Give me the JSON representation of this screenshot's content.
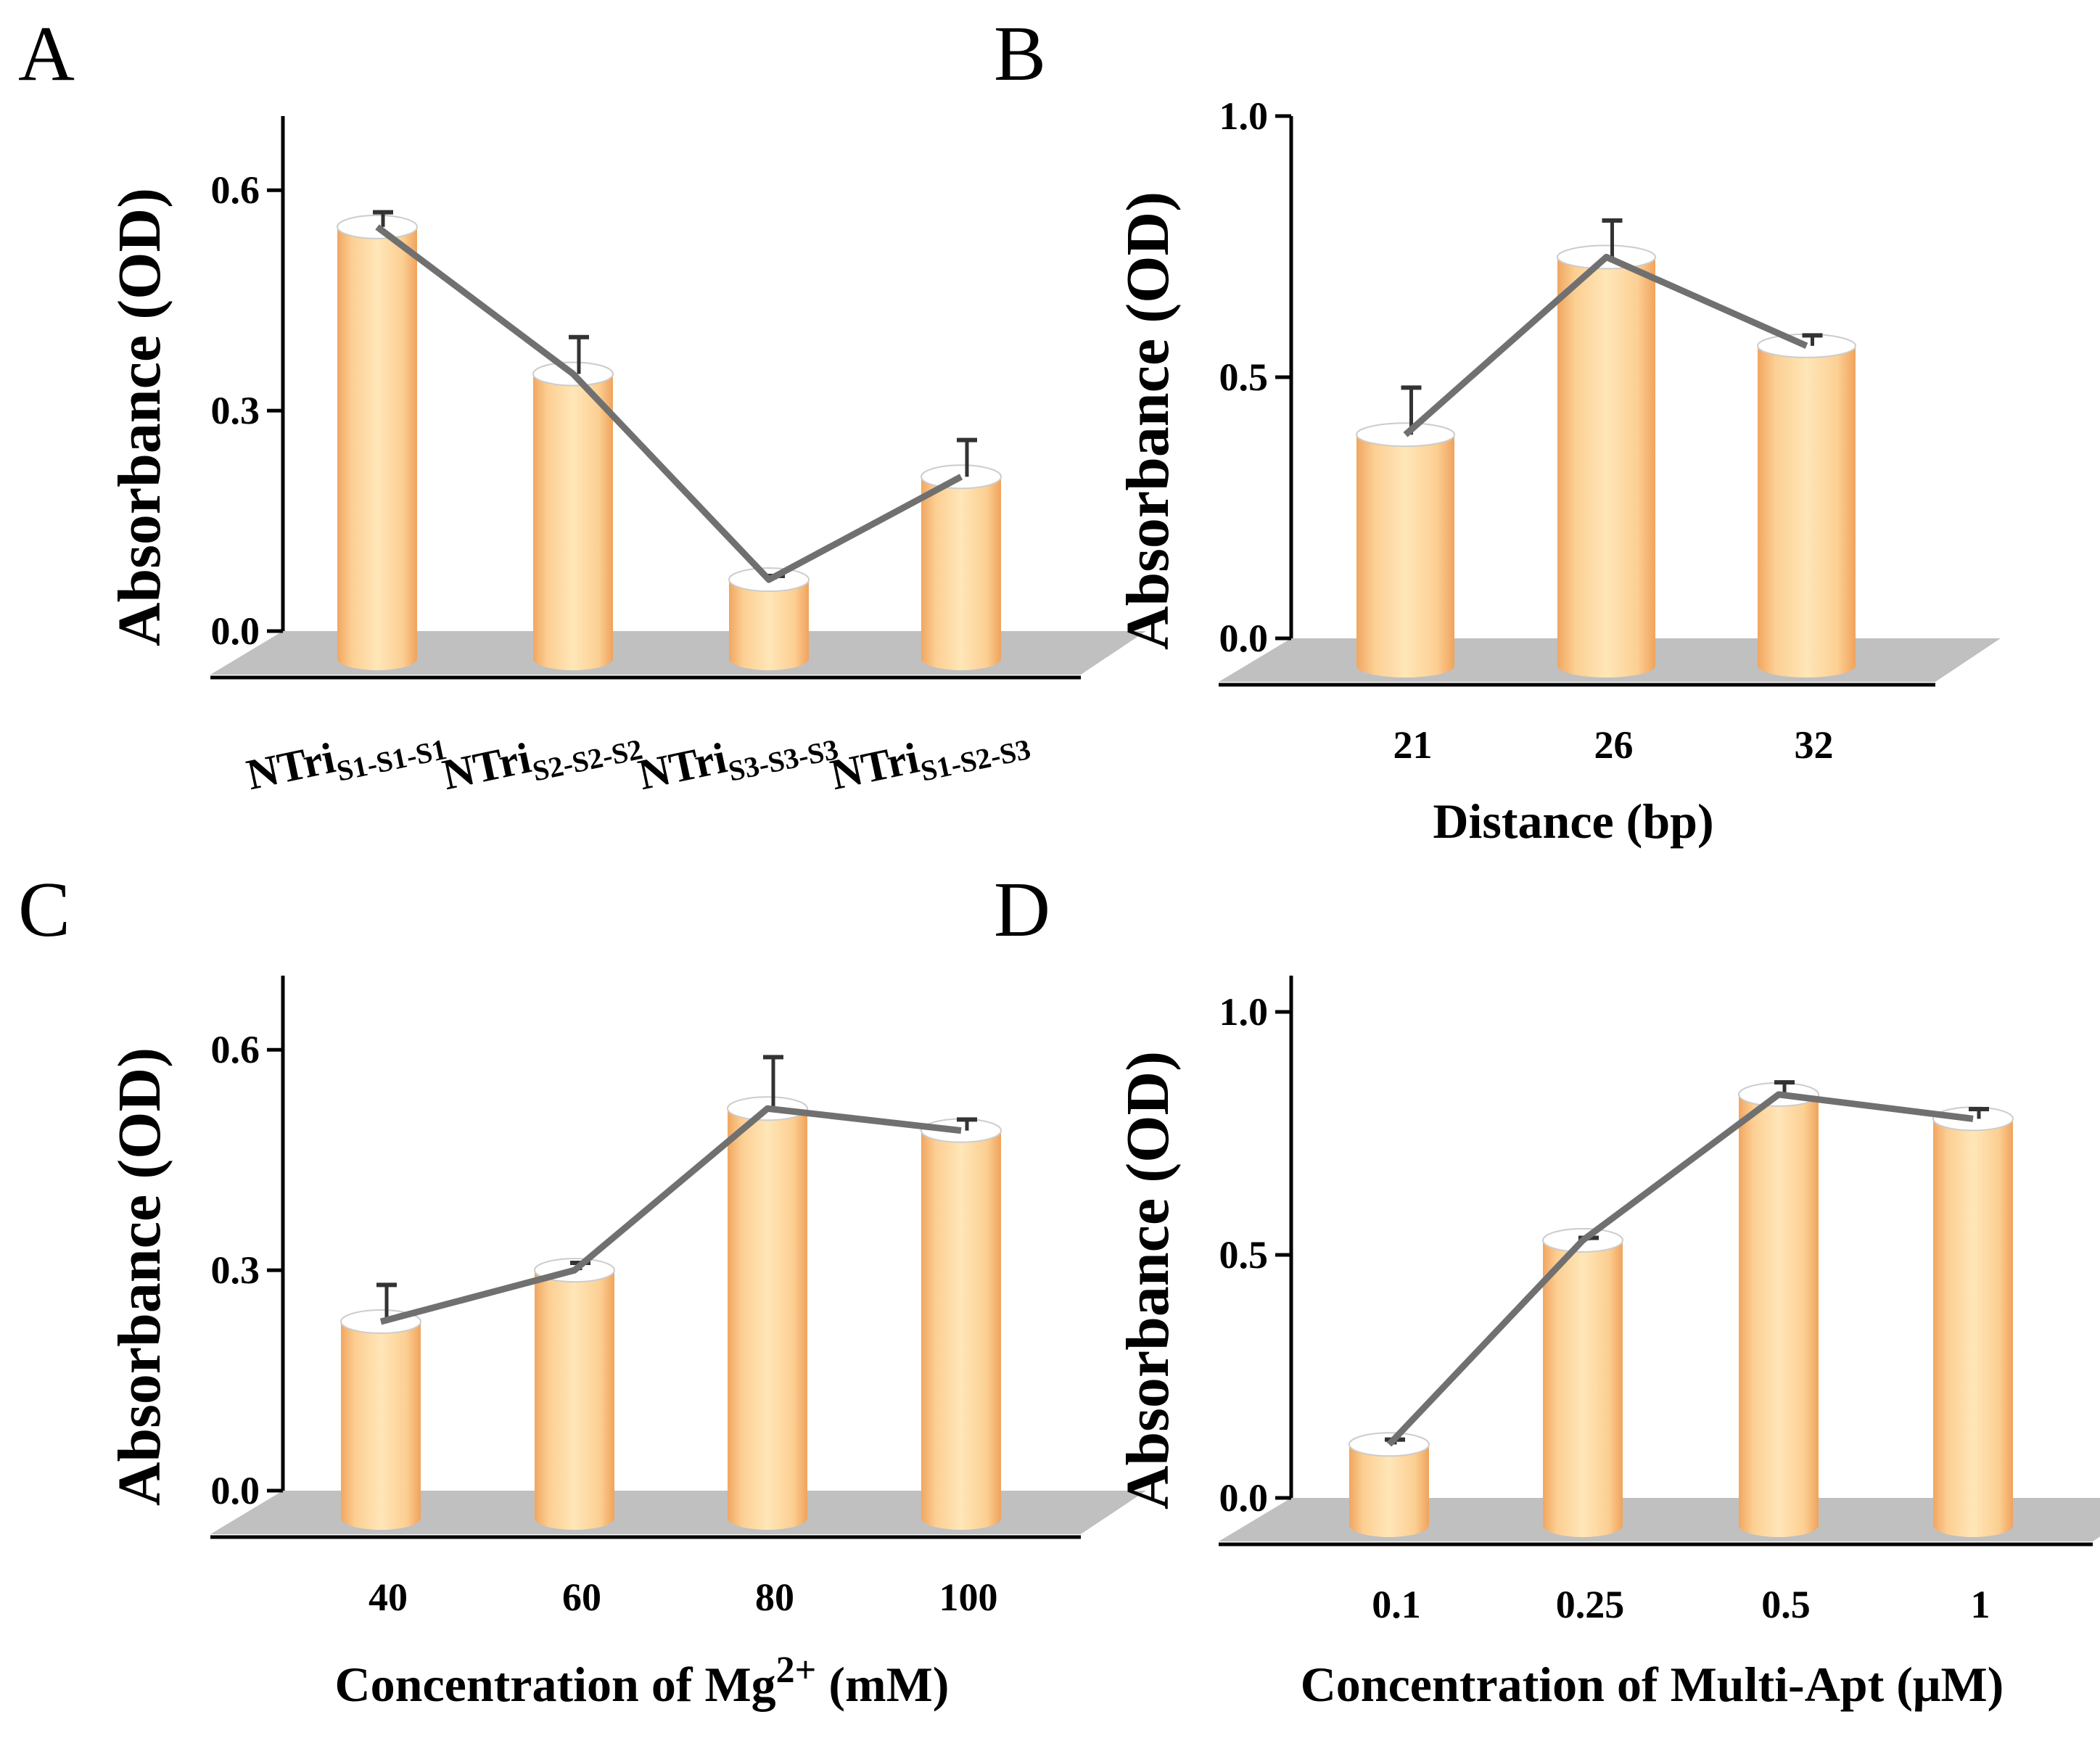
{
  "colors": {
    "floor": "#c0c0c0",
    "line": "#707070",
    "axis": "#000000",
    "bar_mid": "#ffe2ad",
    "bar_edge": "#f0a35c",
    "error": "#333333"
  },
  "chart_data": [
    {
      "panel": "A",
      "type": "bar",
      "ylabel": "Absorbance (OD)",
      "xlabel": "",
      "ylim": [
        0,
        0.7
      ],
      "yticks": [
        "0.0",
        "0.3",
        "0.6"
      ],
      "categories": [
        {
          "main": "NTri",
          "sub": "S1-S1-S1"
        },
        {
          "main": "NTri",
          "sub": "S2-S2-S2"
        },
        {
          "main": "NTri",
          "sub": "S3-S3-S3"
        },
        {
          "main": "NTri",
          "sub": "S1-S2-S3"
        }
      ],
      "values": [
        0.55,
        0.35,
        0.07,
        0.21
      ],
      "errors": [
        0.02,
        0.05,
        0.005,
        0.05
      ]
    },
    {
      "panel": "B",
      "type": "bar",
      "ylabel": "Absorbance (OD)",
      "xlabel": "Distance (bp)",
      "ylim": [
        0,
        1.0
      ],
      "yticks": [
        "0.0",
        "0.5",
        "1.0"
      ],
      "categories": [
        "21",
        "26",
        "32"
      ],
      "values": [
        0.39,
        0.73,
        0.56
      ],
      "errors": [
        0.09,
        0.07,
        0.02
      ]
    },
    {
      "panel": "C",
      "type": "bar",
      "ylabel": "Absorbance (OD)",
      "xlabel": "Concentration of Mg2+ (mM)",
      "xlabel_parts": {
        "pre": "Concentration of Mg",
        "sup": "2+",
        "post": " (mM)"
      },
      "ylim": [
        0,
        0.7
      ],
      "yticks": [
        "0.0",
        "0.3",
        "0.6"
      ],
      "categories": [
        "40",
        "60",
        "80",
        "100"
      ],
      "values": [
        0.23,
        0.3,
        0.52,
        0.49
      ],
      "errors": [
        0.05,
        0.01,
        0.07,
        0.015
      ]
    },
    {
      "panel": "D",
      "type": "bar",
      "ylabel": "Absorbance (OD)",
      "xlabel": "Concentration of Multi-Apt (μM)",
      "ylim": [
        0,
        1.0
      ],
      "yticks": [
        "0.0",
        "0.5",
        "1.0"
      ],
      "categories": [
        "0.1",
        "0.25",
        "0.5",
        "1"
      ],
      "values": [
        0.11,
        0.53,
        0.83,
        0.78
      ],
      "errors": [
        0.01,
        0.005,
        0.025,
        0.02
      ]
    }
  ]
}
